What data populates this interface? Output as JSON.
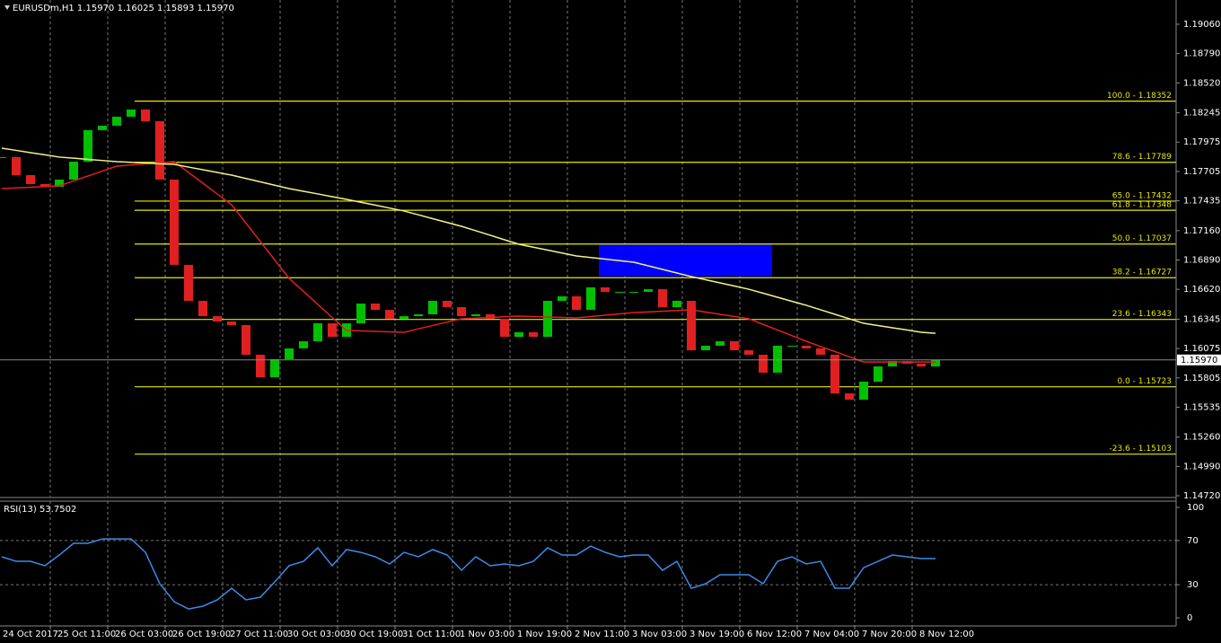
{
  "chart_data": {
    "type": "candlestick",
    "title": "EURUSDm,H1  1.15970 1.16025 1.15893 1.15970",
    "categories": [
      "24 Oct 2017",
      null,
      null,
      null,
      "25 Oct 11:00",
      null,
      null,
      null,
      "26 Oct 03:00",
      null,
      null,
      null,
      "26 Oct 19:00",
      null,
      null,
      null,
      "27 Oct 11:00",
      null,
      null,
      null,
      "30 Oct 03:00",
      null,
      null,
      null,
      "30 Oct 19:00",
      null,
      null,
      null,
      "31 Oct 11:00",
      null,
      null,
      null,
      "1 Nov 03:00",
      null,
      null,
      null,
      "1 Nov 19:00",
      null,
      null,
      null,
      "2 Nov 11:00",
      null,
      null,
      null,
      "3 Nov 03:00",
      null,
      null,
      null,
      "3 Nov 19:00",
      null,
      null,
      null,
      "6 Nov 12:00",
      null,
      null,
      null,
      "7 Nov 04:00",
      null,
      null,
      null,
      "7 Nov 20:00",
      null,
      null,
      null,
      "8 Nov 12:00",
      null
    ],
    "closes": [
      1.17837,
      1.17671,
      1.17589,
      1.17564,
      1.1763,
      1.17795,
      1.18085,
      1.18126,
      1.18209,
      1.18275,
      1.18167,
      1.1763,
      1.16845,
      1.16514,
      1.16373,
      1.16324,
      1.16291,
      1.16018,
      1.15811,
      1.15977,
      1.16076,
      1.16142,
      1.16307,
      1.16183,
      1.16307,
      1.16489,
      1.16431,
      1.16349,
      1.16373,
      1.1639,
      1.16514,
      1.16456,
      1.16373,
      1.1639,
      1.16349,
      1.16183,
      1.16225,
      1.16183,
      1.16514,
      1.16555,
      1.16431,
      1.16638,
      1.16597,
      1.16597,
      1.16597,
      1.16621,
      1.16456,
      1.16514,
      1.16059,
      1.16101,
      1.16142,
      1.16059,
      1.16018,
      1.15853,
      1.16101,
      1.16101,
      1.16076,
      1.16018,
      1.15662,
      1.15604,
      1.1577,
      1.1591,
      1.1596,
      1.15935,
      1.1591,
      1.1597
    ],
    "up_color": "#00c000",
    "down_color": "#e02020",
    "series": [
      {
        "color": "#e02020",
        "values": [
          1.17547,
          1.17553,
          1.1756,
          1.17566,
          1.17572,
          1.17618,
          1.17663,
          1.17709,
          1.17754,
          1.17764,
          1.17775,
          1.17785,
          1.17795,
          1.17696,
          1.17597,
          1.17497,
          1.17398,
          1.17229,
          1.1706,
          1.1689,
          1.16721,
          1.16601,
          1.16481,
          1.16361,
          1.16241,
          1.16237,
          1.16233,
          1.16229,
          1.16225,
          1.16256,
          1.16287,
          1.16318,
          1.16349,
          1.16355,
          1.16361,
          1.16367,
          1.16373,
          1.16369,
          1.16365,
          1.16361,
          1.16357,
          1.16369,
          1.16382,
          1.16394,
          1.16406,
          1.16412,
          1.16419,
          1.16425,
          1.16431,
          1.16411,
          1.1639,
          1.1637,
          1.16349,
          1.16297,
          1.16246,
          1.16194,
          1.16142,
          1.16094,
          1.16047,
          1.15999,
          1.15951,
          1.15951,
          1.15951,
          1.15951,
          1.15951,
          1.15951
        ]
      },
      {
        "color": "#f2f28a",
        "values": [
          1.17919,
          1.17899,
          1.17878,
          1.17858,
          1.17837,
          1.17827,
          1.17816,
          1.17806,
          1.17795,
          1.17789,
          1.17783,
          1.17776,
          1.1777,
          1.17745,
          1.17721,
          1.17696,
          1.17671,
          1.1764,
          1.17609,
          1.17578,
          1.17547,
          1.17522,
          1.17498,
          1.17473,
          1.17448,
          1.17421,
          1.17395,
          1.17368,
          1.17341,
          1.17306,
          1.1727,
          1.17235,
          1.172,
          1.17159,
          1.17118,
          1.17076,
          1.17035,
          1.17008,
          1.16981,
          1.16954,
          1.16927,
          1.16913,
          1.16898,
          1.16884,
          1.16869,
          1.16836,
          1.16803,
          1.1677,
          1.16737,
          1.16708,
          1.16679,
          1.1665,
          1.16621,
          1.16584,
          1.16547,
          1.1651,
          1.16473,
          1.16432,
          1.1639,
          1.16349,
          1.16307,
          1.16287,
          1.16266,
          1.16246,
          1.16225,
          1.16215
        ]
      }
    ],
    "fib_color": "#e8e800",
    "fib_levels": [
      {
        "value": 1.18352,
        "label": "100.0 - 1.18352"
      },
      {
        "value": 1.17789,
        "label": "78.6 - 1.17789"
      },
      {
        "value": 1.17432,
        "label": "65.0 - 1.17432"
      },
      {
        "value": 1.17348,
        "label": "61.8 - 1.17348"
      },
      {
        "value": 1.17037,
        "label": "50.0 - 1.17037"
      },
      {
        "value": 1.16727,
        "label": "38.2 - 1.16727"
      },
      {
        "value": 1.16343,
        "label": "23.6 - 1.16343"
      },
      {
        "value": 1.15723,
        "label": "0.0 - 1.15723"
      },
      {
        "value": 1.15103,
        "label": "-23.6 - 1.15103"
      }
    ],
    "zone": {
      "top": 1.1704,
      "bottom": 1.1674,
      "color": "#0000ff"
    },
    "current_price": {
      "value": 1.1597,
      "label": "1.15970"
    },
    "ylim": [
      1.14712,
      1.19283
    ],
    "yticks": [
      {
        "value": 1.1906,
        "label": "1.19060"
      },
      {
        "value": 1.1879,
        "label": "1.18790"
      },
      {
        "value": 1.1852,
        "label": "1.18520"
      },
      {
        "value": 1.18245,
        "label": "1.18245"
      },
      {
        "value": 1.17975,
        "label": "1.17975"
      },
      {
        "value": 1.17705,
        "label": "1.17705"
      },
      {
        "value": 1.17435,
        "label": "1.17435"
      },
      {
        "value": 1.1716,
        "label": "1.17160"
      },
      {
        "value": 1.1689,
        "label": "1.16890"
      },
      {
        "value": 1.1662,
        "label": "1.16620"
      },
      {
        "value": 1.16345,
        "label": "1.16345"
      },
      {
        "value": 1.16075,
        "label": "1.16075"
      },
      {
        "value": 1.15805,
        "label": "1.15805"
      },
      {
        "value": 1.15535,
        "label": "1.15535"
      },
      {
        "value": 1.1526,
        "label": "1.15260"
      },
      {
        "value": 1.1499,
        "label": "1.14990"
      },
      {
        "value": 1.1472,
        "label": "1.14720"
      }
    ],
    "rsi": {
      "title": "RSI(13) 53.7502",
      "color": "#3c8ce8",
      "values": [
        55.3,
        51.2,
        51.2,
        47.2,
        56.9,
        67.5,
        67.5,
        71.5,
        71.5,
        71.5,
        59.3,
        30.9,
        14.6,
        8.1,
        10.6,
        16.3,
        26.8,
        16.3,
        18.7,
        32.5,
        47.2,
        51.2,
        63.4,
        47.2,
        61.8,
        59.3,
        55.3,
        48.8,
        59.3,
        55.3,
        61.8,
        56.9,
        43.1,
        55.3,
        47.2,
        48.8,
        47.2,
        51.2,
        63.4,
        56.9,
        56.9,
        65.0,
        59.3,
        55.3,
        56.9,
        56.9,
        43.1,
        51.2,
        26.8,
        30.9,
        39.0,
        39.0,
        39.0,
        30.9,
        51.2,
        55.3,
        48.8,
        51.2,
        26.8,
        26.8,
        45.5,
        51.2,
        56.9,
        55.3,
        53.7,
        53.7
      ],
      "ylim": [
        -7.3,
        105.7
      ],
      "yticks": [
        0,
        30,
        70,
        100
      ],
      "levels": [
        30,
        70
      ]
    }
  }
}
